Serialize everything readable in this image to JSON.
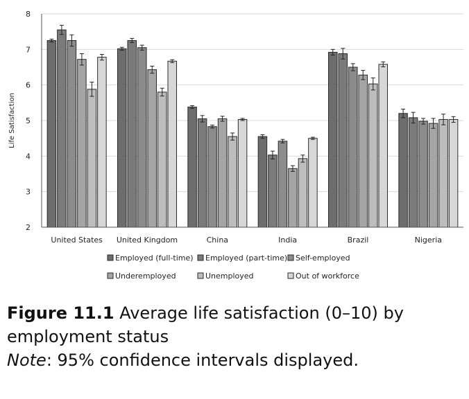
{
  "chart_data": {
    "type": "bar",
    "ylabel": "Life Satisfaction",
    "ylim": [
      2,
      8
    ],
    "yticks": [
      "2",
      "3",
      "4",
      "5",
      "6",
      "7",
      "8"
    ],
    "grid": true,
    "legend_position": "bottom",
    "categories": [
      "United States",
      "United Kingdom",
      "China",
      "India",
      "Brazil",
      "Nigeria"
    ],
    "series": [
      {
        "name": "Employed (full-time)",
        "color": "#6d6d6d",
        "values": [
          7.25,
          7.02,
          5.38,
          4.55,
          6.92,
          5.2
        ],
        "ci": [
          0.04,
          0.04,
          0.04,
          0.05,
          0.08,
          0.12
        ]
      },
      {
        "name": "Employed (part-time)",
        "color": "#7b7b7b",
        "values": [
          7.55,
          7.25,
          5.05,
          4.03,
          6.88,
          5.08
        ],
        "ci": [
          0.13,
          0.06,
          0.09,
          0.11,
          0.15,
          0.15
        ]
      },
      {
        "name": "Self-employed",
        "color": "#8c8c8c",
        "values": [
          7.25,
          7.05,
          4.83,
          4.42,
          6.5,
          4.98
        ],
        "ci": [
          0.16,
          0.07,
          0.04,
          0.05,
          0.1,
          0.08
        ]
      },
      {
        "name": "Underemployed",
        "color": "#a5a5a5",
        "values": [
          6.72,
          6.43,
          5.05,
          3.65,
          6.28,
          4.92
        ],
        "ci": [
          0.16,
          0.1,
          0.07,
          0.08,
          0.13,
          0.14
        ]
      },
      {
        "name": "Unemployed",
        "color": "#bdbdbd",
        "values": [
          5.88,
          5.8,
          4.55,
          3.93,
          6.03,
          5.03
        ],
        "ci": [
          0.2,
          0.11,
          0.1,
          0.1,
          0.17,
          0.15
        ]
      },
      {
        "name": "Out of workforce",
        "color": "#d7d7d7",
        "values": [
          6.78,
          6.67,
          5.03,
          4.5,
          6.58,
          5.03
        ],
        "ci": [
          0.08,
          0.04,
          0.03,
          0.03,
          0.07,
          0.08
        ]
      }
    ]
  },
  "caption": {
    "figure_label": "Figure 11.1",
    "title_part1": "Average life satisfaction (0–10) by",
    "title_part2": "employment status",
    "note_label": "Note",
    "note_text": ": 95% confidence intervals displayed."
  }
}
